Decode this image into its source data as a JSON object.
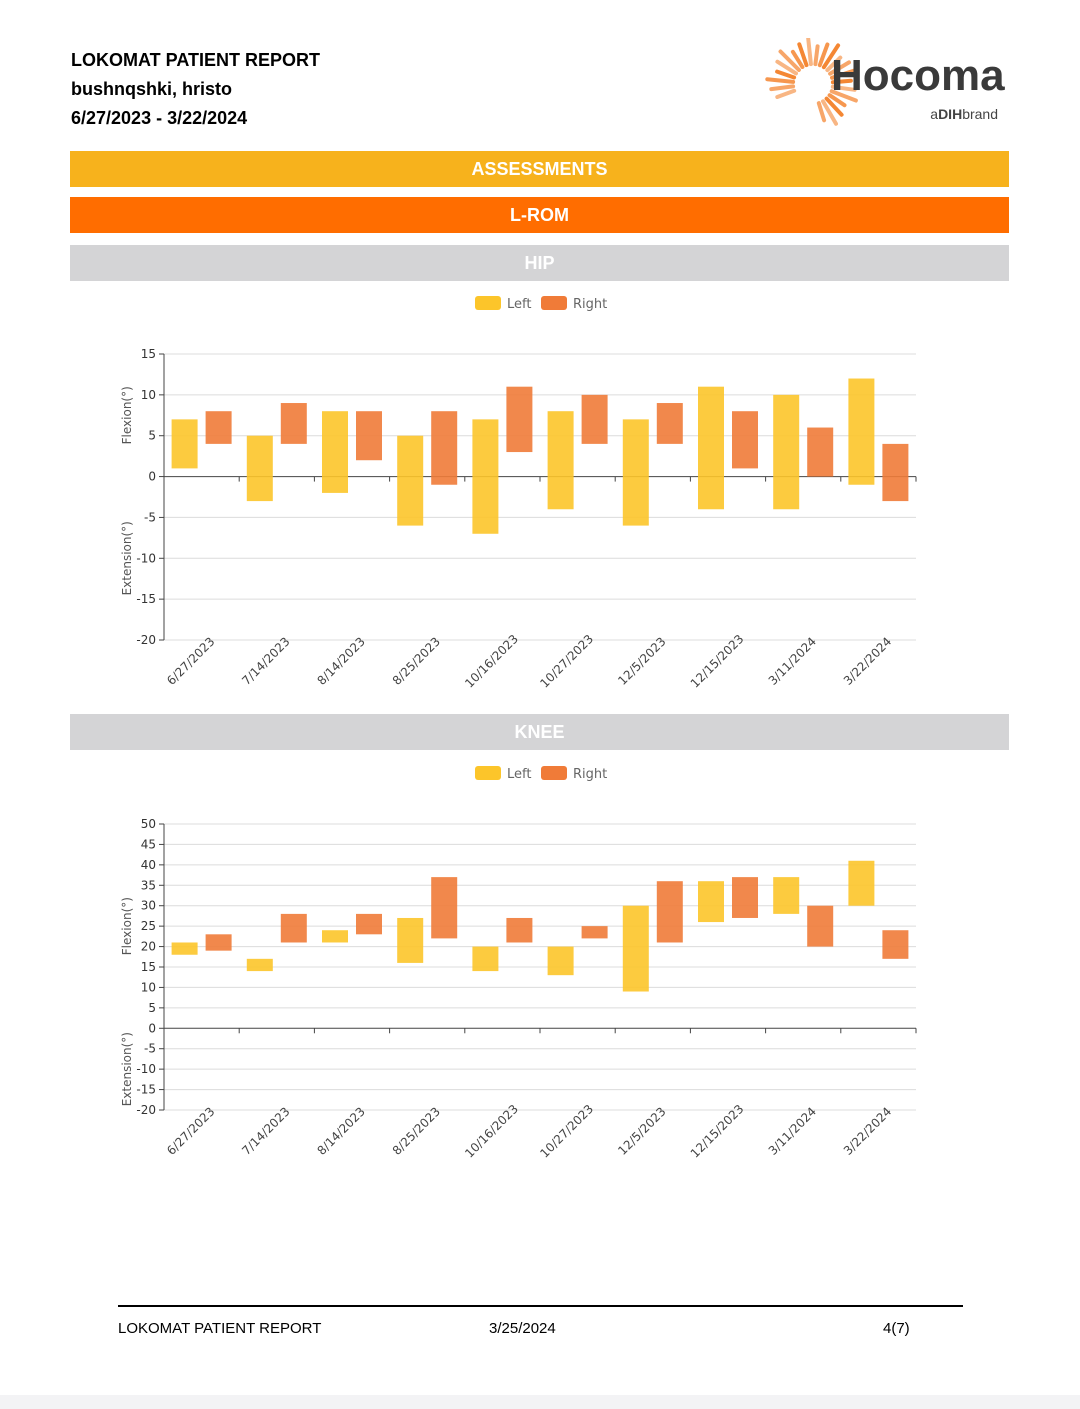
{
  "header": {
    "title": "LOKOMAT PATIENT REPORT",
    "patient": "bushnqshki, hristo",
    "date_range": "6/27/2023 - 3/22/2024"
  },
  "logo": {
    "name": "Hocoma",
    "tagline_prefix": "a",
    "tagline_brand": "DIH",
    "tagline_suffix": "brand",
    "accent": "#f47c20"
  },
  "sections": {
    "assessments": "ASSESSMENTS",
    "lrom": "L-ROM",
    "hip": "HIP",
    "knee": "KNEE"
  },
  "colors": {
    "left": "#fcc52a",
    "right": "#f07b38",
    "band_yellow": "#f7b21c",
    "band_orange": "#ff6d00",
    "band_gray": "#d4d4d6"
  },
  "chart_data": [
    {
      "type": "bar",
      "subtype": "floating",
      "chart": "hip",
      "categories": [
        "6/27/2023",
        "7/14/2023",
        "8/14/2023",
        "8/25/2023",
        "10/16/2023",
        "10/27/2023",
        "12/5/2023",
        "12/15/2023",
        "3/11/2024",
        "3/22/2024"
      ],
      "series": [
        {
          "name": "Left",
          "ranges": [
            [
              1,
              7
            ],
            [
              -3,
              5
            ],
            [
              -2,
              8
            ],
            [
              -6,
              5
            ],
            [
              -7,
              7
            ],
            [
              -4,
              8
            ],
            [
              -6,
              7
            ],
            [
              -4,
              11
            ],
            [
              -4,
              10
            ],
            [
              -1,
              12
            ]
          ]
        },
        {
          "name": "Right",
          "ranges": [
            [
              4,
              8
            ],
            [
              4,
              9
            ],
            [
              2,
              8
            ],
            [
              -1,
              8
            ],
            [
              3,
              11
            ],
            [
              4,
              10
            ],
            [
              4,
              9
            ],
            [
              1,
              8
            ],
            [
              0,
              6
            ],
            [
              -3,
              4
            ]
          ]
        }
      ],
      "ylabel_top": "Flexion(°)",
      "ylabel_bottom": "Extension(°)",
      "ylim": [
        -20,
        15
      ],
      "yticks": [
        15,
        10,
        5,
        0,
        -5,
        -10,
        -15,
        -20
      ],
      "legend": "top-center",
      "grid": true
    },
    {
      "type": "bar",
      "subtype": "floating",
      "chart": "knee",
      "categories": [
        "6/27/2023",
        "7/14/2023",
        "8/14/2023",
        "8/25/2023",
        "10/16/2023",
        "10/27/2023",
        "12/5/2023",
        "12/15/2023",
        "3/11/2024",
        "3/22/2024"
      ],
      "series": [
        {
          "name": "Left",
          "ranges": [
            [
              18,
              21
            ],
            [
              14,
              17
            ],
            [
              21,
              24
            ],
            [
              16,
              27
            ],
            [
              14,
              20
            ],
            [
              13,
              20
            ],
            [
              9,
              30
            ],
            [
              26,
              36
            ],
            [
              28,
              37
            ],
            [
              30,
              41
            ]
          ]
        },
        {
          "name": "Right",
          "ranges": [
            [
              19,
              23
            ],
            [
              21,
              28
            ],
            [
              23,
              28
            ],
            [
              22,
              37
            ],
            [
              21,
              27
            ],
            [
              22,
              25
            ],
            [
              21,
              36
            ],
            [
              27,
              37
            ],
            [
              20,
              30
            ],
            [
              17,
              24
            ]
          ]
        }
      ],
      "ylabel_top": "Flexion(°)",
      "ylabel_bottom": "Extension(°)",
      "ylim": [
        -20,
        50
      ],
      "yticks": [
        50,
        45,
        40,
        35,
        30,
        25,
        20,
        15,
        10,
        5,
        0,
        -5,
        -10,
        -15,
        -20
      ],
      "legend": "top-center",
      "grid": true
    }
  ],
  "footer": {
    "title": "LOKOMAT PATIENT REPORT",
    "date": "3/25/2024",
    "page": "4(7)"
  }
}
